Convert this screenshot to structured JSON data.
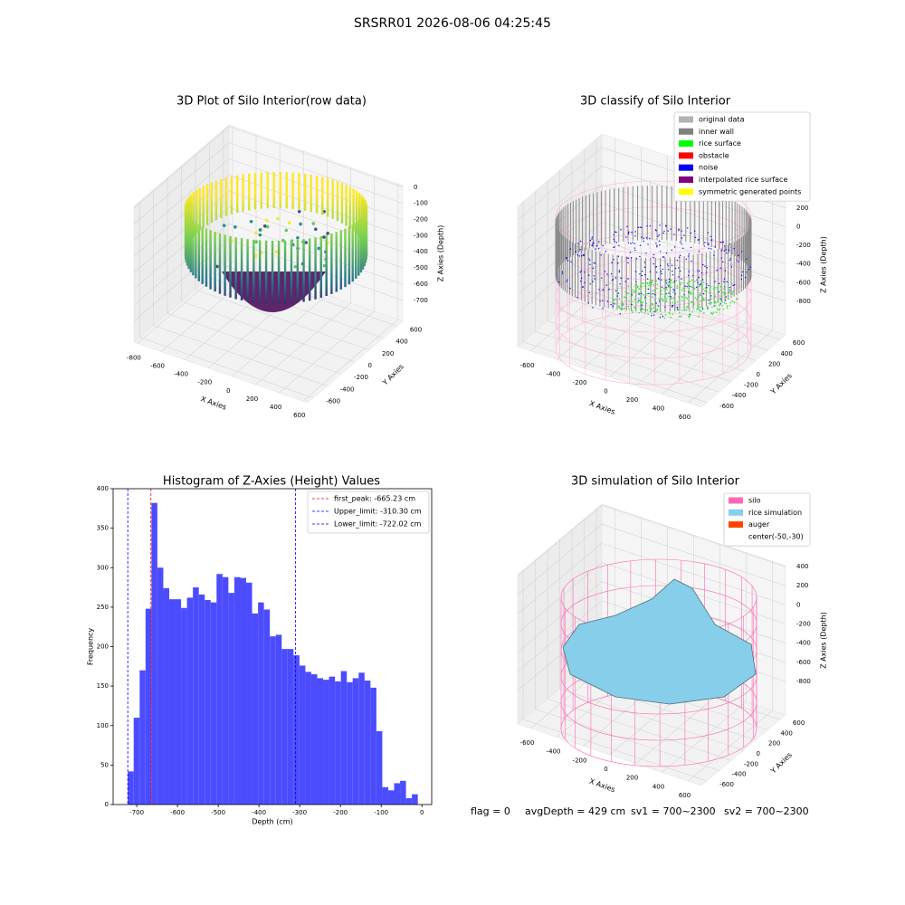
{
  "suptitle": "SRSRR01 2026-08-06 04:25:45",
  "footer": [
    "flag = 0",
    "avgDepth = 429 cm",
    "sv1 = 700~2300",
    "sv2 = 700~2300"
  ],
  "chart_data": [
    {
      "type": "scatter3d",
      "title": "3D Plot of Silo Interior(row data)",
      "xlabel": "X Axies",
      "ylabel": "Y Axies",
      "zlabel": "Z Axies (Depth)",
      "xlim": [
        -830,
        640
      ],
      "ylim": [
        -680,
        680
      ],
      "zlim": [
        -830,
        10
      ],
      "xticks": [
        -800,
        -600,
        -400,
        -200,
        0,
        200,
        400,
        600
      ],
      "yticks": [
        -600,
        -400,
        -200,
        0,
        200,
        400,
        600
      ],
      "zticks": [
        0,
        -100,
        -200,
        -300,
        -400,
        -500,
        -600,
        -700
      ]
    },
    {
      "type": "scatter3d",
      "title": "3D classify of Silo Interior",
      "xlim": [
        -700,
        700
      ],
      "ylim": [
        -690,
        690
      ],
      "zlim": [
        -1160,
        345
      ],
      "xticks": [
        -600,
        -400,
        -200,
        0,
        200,
        400,
        600
      ],
      "yticks": [
        -600,
        -400,
        -200,
        0,
        200,
        400,
        600
      ],
      "zticks": [
        200,
        0,
        -200,
        -400,
        -600,
        -800
      ],
      "xlabel": "X Axies",
      "ylabel": "Y Axies",
      "zlabel": "Z Axies (Depth)",
      "legend": [
        {
          "name": "original data",
          "color": "#b3b3b3"
        },
        {
          "name": "inner wall",
          "color": "#808080"
        },
        {
          "name": "rice surface",
          "color": "#00ff00"
        },
        {
          "name": "obstacle",
          "color": "#ff0000"
        },
        {
          "name": "noise",
          "color": "#0000ff"
        },
        {
          "name": "interpolated rice surface",
          "color": "#800080"
        },
        {
          "name": "symmetric generated points",
          "color": "#ffff00"
        }
      ]
    },
    {
      "type": "histogram",
      "title": "Histogram of Z-Axies (Height) Values",
      "xlabel": "Depth (cm)",
      "ylabel": "Frequency",
      "color": "#4c4cff",
      "xlim": [
        -758,
        24
      ],
      "ylim": [
        0,
        400
      ],
      "xticks": [
        -700,
        -600,
        -500,
        -400,
        -300,
        -200,
        -100,
        0
      ],
      "yticks": [
        0,
        50,
        100,
        150,
        200,
        250,
        300,
        350,
        400
      ],
      "bins": [
        -722.0,
        -707.5,
        -692.9,
        -678.4,
        -663.9,
        -649.4,
        -634.8,
        -620.3,
        -605.8,
        -591.2,
        -576.7,
        -562.2,
        -547.6,
        -533.1,
        -518.6,
        -504.1,
        -489.5,
        -475.0,
        -460.5,
        -445.9,
        -431.4,
        -416.9,
        -402.3,
        -387.8,
        -373.3,
        -358.8,
        -344.2,
        -329.7,
        -315.2,
        -300.6,
        -286.1,
        -271.6,
        -257.0,
        -242.5,
        -228.0,
        -213.5,
        -198.9,
        -184.4,
        -169.9,
        -155.3,
        -140.8,
        -126.3,
        -111.7,
        -97.2,
        -82.7,
        -68.2,
        -53.6,
        -39.1,
        -24.6,
        -10.0
      ],
      "counts": [
        42,
        110,
        170,
        248,
        382,
        300,
        274,
        260,
        260,
        249,
        262,
        275,
        266,
        259,
        256,
        292,
        288,
        268,
        288,
        287,
        281,
        242,
        256,
        247,
        213,
        215,
        197,
        197,
        189,
        176,
        168,
        165,
        160,
        158,
        162,
        156,
        169,
        155,
        160,
        167,
        157,
        148,
        93,
        22,
        18,
        27,
        30,
        8,
        13
      ],
      "lines": [
        {
          "name": "first_peak: -665.23 cm",
          "value": -665.23,
          "color": "#ff0000"
        },
        {
          "name": "Upper_limit: -310.30 cm",
          "value": -310.3,
          "color": "#0000ff"
        },
        {
          "name": "Lower_limit: -722.02 cm",
          "value": -722.02,
          "color": "#0000ff"
        }
      ]
    },
    {
      "type": "surface3d",
      "title": "3D simulation of Silo Interior",
      "xlabel": "X Axies",
      "ylabel": "Y Axies",
      "zlabel": "Z Axies (Depth)",
      "xlim": [
        -700,
        700
      ],
      "ylim": [
        -690,
        690
      ],
      "zlim": [
        -1150,
        410
      ],
      "xticks": [
        -600,
        -400,
        -200,
        0,
        200,
        400,
        600
      ],
      "yticks": [
        -600,
        -400,
        -200,
        0,
        200,
        400,
        600
      ],
      "zticks": [
        400,
        200,
        0,
        -200,
        -400,
        -600,
        -800
      ],
      "legend": [
        {
          "name": "silo",
          "color": "#ff69b4"
        },
        {
          "name": "rice simulation",
          "color": "#87ceeb"
        },
        {
          "name": "auger",
          "color": "#ff4500"
        },
        {
          "name": "center(-50,-30)",
          "color": "#ffffff"
        }
      ]
    }
  ]
}
